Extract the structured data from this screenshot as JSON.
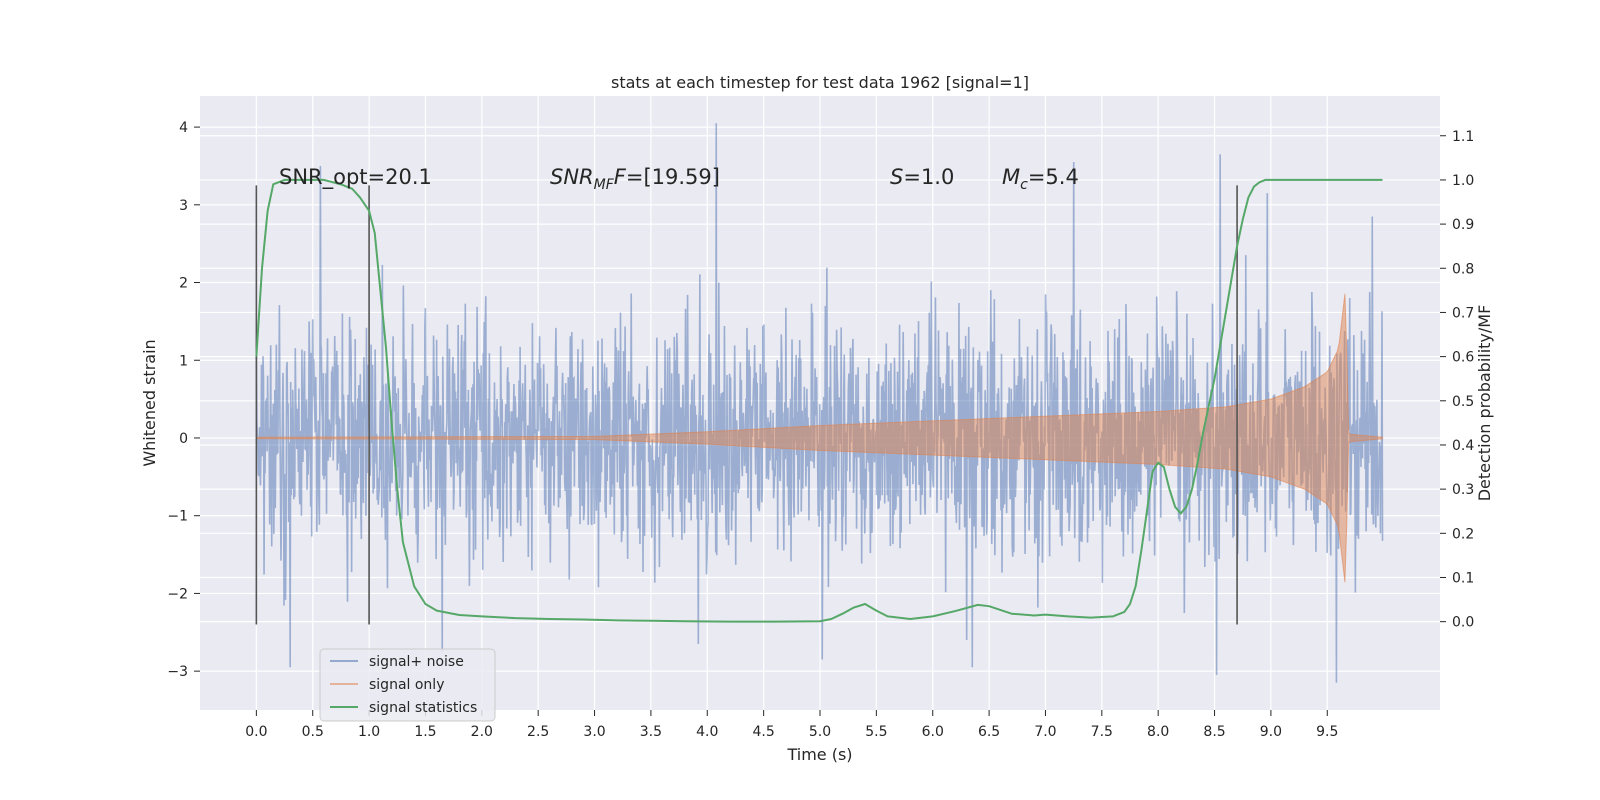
{
  "chart_data": {
    "type": "line",
    "title": "stats at each timestep for test data 1962 [signal=1]",
    "xlabel": "Time (s)",
    "ylabel_left": "Whitened strain",
    "ylabel_right": "Detection probability/MF",
    "xlim": [
      -0.5,
      10.5
    ],
    "ylim_left": [
      -3.5,
      4.4
    ],
    "ylim_right": [
      -0.2,
      1.19
    ],
    "x_ticks": [
      "0.0",
      "0.5",
      "1.0",
      "1.5",
      "2.0",
      "2.5",
      "3.0",
      "3.5",
      "4.0",
      "4.5",
      "5.0",
      "5.5",
      "6.0",
      "6.5",
      "7.0",
      "7.5",
      "8.0",
      "8.5",
      "9.0",
      "9.5"
    ],
    "y_left_ticks": [
      "−3",
      "−2",
      "−1",
      "0",
      "1",
      "2",
      "3",
      "4"
    ],
    "y_right_ticks": [
      "0.0",
      "0.1",
      "0.2",
      "0.3",
      "0.4",
      "0.5",
      "0.6",
      "0.7",
      "0.8",
      "0.9",
      "1.0",
      "1.1"
    ],
    "grid": true,
    "annotations": {
      "snr_opt": "SNR_opt=20.1",
      "snr_mf_base": "SNR",
      "snr_mf_sub": "MF",
      "snr_mf_rest": "=[19.59]",
      "s_base": "S",
      "s_rest": "=1.0",
      "mc_base": "M",
      "mc_sub": "c",
      "mc_rest": "=5.4"
    },
    "vlines": [
      0.0,
      1.0,
      8.7
    ],
    "vline_range": [
      -2.4,
      3.25
    ],
    "legend": {
      "placement": "lower-left",
      "entries": [
        "signal+ noise",
        "signal only",
        "signal statistics"
      ]
    },
    "series": [
      {
        "name": "signal+ noise",
        "color": "#4c72b0",
        "x_range": [
          0.0,
          9.99
        ],
        "noise_sigma": 0.75,
        "spikes": [
          [
            0.57,
            3.5
          ],
          [
            4.08,
            4.05
          ],
          [
            7.25,
            3.55
          ],
          [
            8.55,
            3.65
          ],
          [
            8.97,
            3.15
          ],
          [
            9.9,
            2.85
          ],
          [
            9.58,
            -3.15
          ],
          [
            8.52,
            -3.05
          ],
          [
            6.35,
            -2.95
          ],
          [
            5.02,
            -2.85
          ],
          [
            3.92,
            -2.65
          ],
          [
            1.65,
            -2.75
          ],
          [
            0.3,
            -2.95
          ]
        ]
      },
      {
        "name": "signal only",
        "color": "#dd8452",
        "envelope": [
          [
            0.0,
            0.01
          ],
          [
            3.0,
            0.02
          ],
          [
            4.0,
            0.08
          ],
          [
            5.0,
            0.16
          ],
          [
            6.0,
            0.22
          ],
          [
            7.0,
            0.28
          ],
          [
            8.0,
            0.34
          ],
          [
            8.6,
            0.4
          ],
          [
            9.0,
            0.5
          ],
          [
            9.3,
            0.66
          ],
          [
            9.5,
            0.85
          ],
          [
            9.6,
            1.15
          ],
          [
            9.66,
            1.9
          ],
          [
            9.69,
            0.05
          ],
          [
            9.99,
            0.01
          ]
        ]
      },
      {
        "name": "signal statistics",
        "color": "#55a868",
        "x": [
          0.0,
          0.05,
          0.1,
          0.15,
          0.25,
          0.4,
          0.6,
          0.75,
          0.85,
          0.92,
          1.0,
          1.05,
          1.1,
          1.15,
          1.2,
          1.25,
          1.3,
          1.4,
          1.5,
          1.6,
          1.8,
          2.0,
          2.3,
          2.6,
          2.9,
          3.2,
          3.5,
          3.8,
          4.2,
          4.6,
          5.0,
          5.1,
          5.2,
          5.3,
          5.4,
          5.5,
          5.6,
          5.8,
          6.0,
          6.2,
          6.4,
          6.5,
          6.7,
          6.9,
          7.0,
          7.2,
          7.4,
          7.6,
          7.7,
          7.75,
          7.8,
          7.85,
          7.9,
          7.95,
          8.0,
          8.05,
          8.1,
          8.15,
          8.2,
          8.25,
          8.3,
          8.35,
          8.4,
          8.5,
          8.6,
          8.7,
          8.75,
          8.8,
          8.85,
          8.9,
          8.95,
          9.0,
          9.5,
          9.99
        ],
        "values": [
          0.6,
          0.8,
          0.93,
          0.99,
          1.0,
          1.0,
          1.0,
          0.99,
          0.98,
          0.96,
          0.93,
          0.88,
          0.75,
          0.62,
          0.45,
          0.3,
          0.18,
          0.08,
          0.04,
          0.025,
          0.015,
          0.012,
          0.008,
          0.006,
          0.005,
          0.003,
          0.002,
          0.001,
          0.0,
          0.0,
          0.001,
          0.006,
          0.018,
          0.032,
          0.04,
          0.025,
          0.012,
          0.006,
          0.012,
          0.024,
          0.038,
          0.035,
          0.018,
          0.014,
          0.016,
          0.012,
          0.009,
          0.012,
          0.022,
          0.04,
          0.08,
          0.16,
          0.25,
          0.34,
          0.36,
          0.35,
          0.3,
          0.26,
          0.245,
          0.26,
          0.3,
          0.36,
          0.43,
          0.55,
          0.7,
          0.85,
          0.91,
          0.96,
          0.985,
          0.995,
          1.0,
          1.0,
          1.0,
          1.0
        ]
      }
    ]
  }
}
